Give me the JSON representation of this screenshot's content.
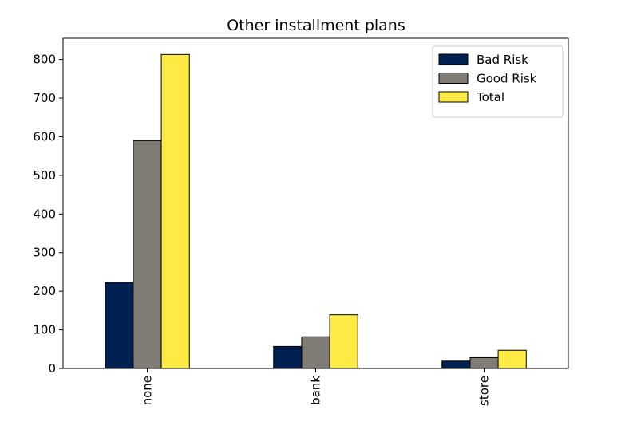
{
  "chart_data": {
    "type": "bar",
    "title": "Other installment plans",
    "xlabel": "",
    "ylabel": "",
    "categories": [
      "none",
      "bank",
      "store"
    ],
    "series": [
      {
        "name": "Bad Risk",
        "values": [
          223,
          57,
          19
        ],
        "color": "#002051"
      },
      {
        "name": "Good Risk",
        "values": [
          590,
          82,
          28
        ],
        "color": "#7f7c75"
      },
      {
        "name": "Total",
        "values": [
          813,
          139,
          47
        ],
        "color": "#fdea45"
      }
    ],
    "ylim": [
      0,
      855
    ],
    "yticks": [
      0,
      100,
      200,
      300,
      400,
      500,
      600,
      700,
      800
    ],
    "legend_position": "top-right",
    "grid": false
  }
}
